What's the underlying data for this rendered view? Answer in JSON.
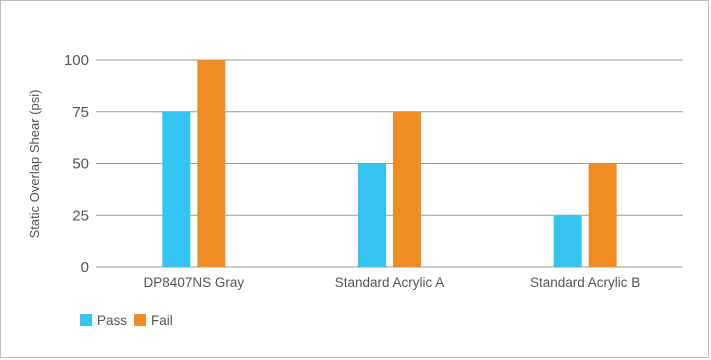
{
  "chart_data": {
    "type": "bar",
    "ylabel": "Static Overlap Shear (psi)",
    "ylim": [
      0,
      100
    ],
    "yticks": [
      0,
      25,
      50,
      75,
      100
    ],
    "grid": true,
    "legend_position": "bottom-left",
    "categories": [
      "DP8407NS Gray",
      "Standard Acrylic A",
      "Standard Acrylic B"
    ],
    "series": [
      {
        "name": "Pass",
        "color": "#33c5ef",
        "values": [
          75,
          50,
          25
        ]
      },
      {
        "name": "Fail",
        "color": "#ef8c24",
        "values": [
          100,
          75,
          50
        ]
      }
    ]
  }
}
